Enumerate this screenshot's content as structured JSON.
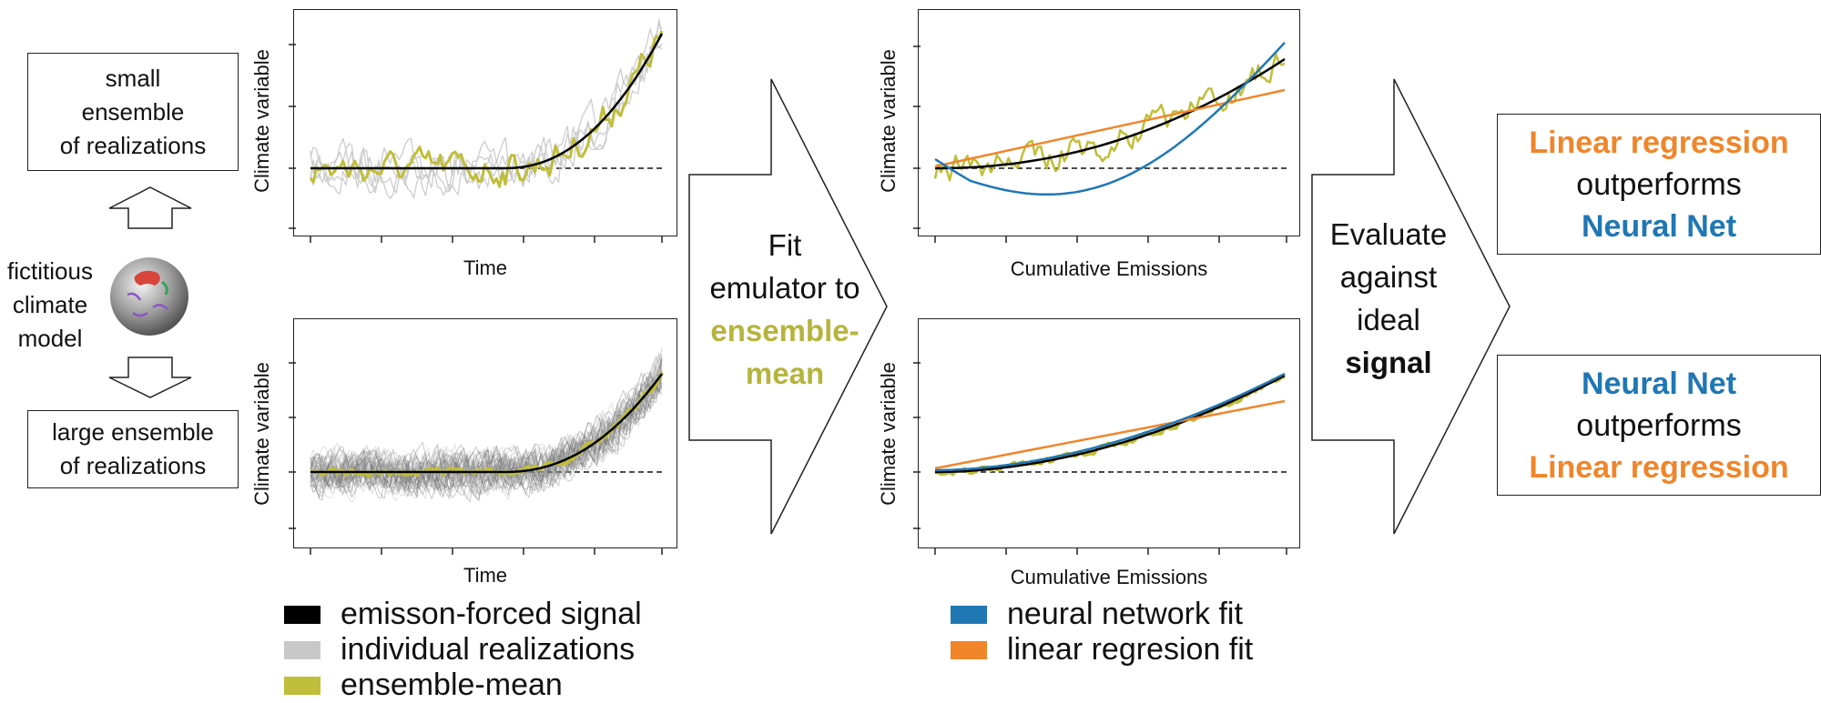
{
  "colors": {
    "signal": "#000000",
    "realizations": "#c8c8c8",
    "ensemble_mean": "#c0be3a",
    "neural_net": "#1f77b4",
    "linear": "#f0852a"
  },
  "left": {
    "small_box": [
      "small",
      "ensemble",
      "of realizations"
    ],
    "model_label": [
      "fictitious",
      "climate",
      "model"
    ],
    "large_box": [
      "large ensemble",
      "of realizations"
    ]
  },
  "plots": {
    "y_label": "Climate variable",
    "top_left_x": "Time",
    "bottom_left_x": "Time",
    "top_right_x": "Cumulative Emissions",
    "bottom_right_x": "Cumulative Emissions"
  },
  "arrow1": {
    "line1": "Fit",
    "line2": "emulator to",
    "line3": "ensemble-",
    "line4": "mean"
  },
  "arrow2": {
    "line1": "Evaluate",
    "line2": "against",
    "line3": "ideal",
    "line4": "signal"
  },
  "result_top": {
    "line1": "Linear regression",
    "line2": "outperforms",
    "line3": "Neural Net"
  },
  "result_bottom": {
    "line1": "Neural Net",
    "line2": "outperforms",
    "line3": "Linear regression"
  },
  "legend_left": [
    {
      "label": "emisson-forced signal",
      "color": "#000000"
    },
    {
      "label": "individual realizations",
      "color": "#c8c8c8"
    },
    {
      "label": "ensemble-mean",
      "color": "#c0be3a"
    }
  ],
  "legend_right": [
    {
      "label": "neural network fit",
      "color": "#1f77b4"
    },
    {
      "label": "linear regresion fit",
      "color": "#f0852a"
    }
  ]
}
